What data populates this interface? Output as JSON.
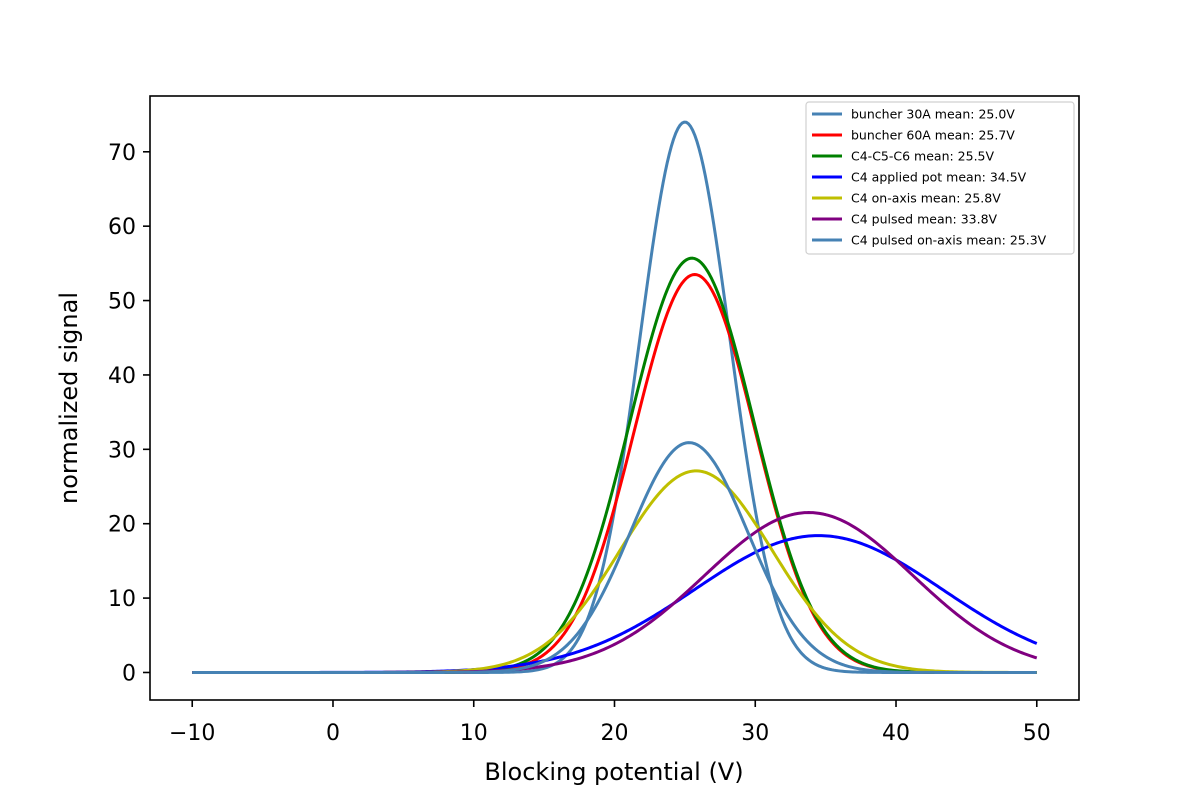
{
  "chart_data": {
    "type": "line",
    "title": "",
    "xlabel": "Blocking potential (V)",
    "ylabel": "normalized signal",
    "xlim": [
      -13,
      53
    ],
    "ylim": [
      -3.7,
      77.5
    ],
    "xticks": [
      -10,
      0,
      10,
      20,
      30,
      40,
      50
    ],
    "xtick_labels": [
      "−10",
      "0",
      "10",
      "20",
      "30",
      "40",
      "50"
    ],
    "yticks": [
      0,
      10,
      20,
      30,
      40,
      50,
      60,
      70
    ],
    "ytick_labels": [
      "0",
      "10",
      "20",
      "30",
      "40",
      "50",
      "60",
      "70"
    ],
    "x_range": [
      -10,
      50
    ],
    "grid": false,
    "legend_position": "top-right",
    "series": [
      {
        "name": "buncher 30A mean: 25.0V",
        "color": "#4682b4",
        "model": "gaussian",
        "mean": 25.0,
        "peak": 74.0,
        "sigma": 3.2
      },
      {
        "name": "buncher 60A mean: 25.7V",
        "color": "#ff0000",
        "model": "gaussian",
        "mean": 25.7,
        "peak": 53.5,
        "sigma": 4.3
      },
      {
        "name": "C4-C5-C6 mean: 25.5V",
        "color": "#008000",
        "model": "gaussian",
        "mean": 25.5,
        "peak": 55.7,
        "sigma": 4.4
      },
      {
        "name": "C4 applied pot mean: 34.5V",
        "color": "#0000ff",
        "model": "gaussian",
        "mean": 34.5,
        "peak": 18.4,
        "sigma": 8.8
      },
      {
        "name": "C4 on-axis mean: 25.8V",
        "color": "#bfbf00",
        "model": "gaussian",
        "mean": 25.8,
        "peak": 27.1,
        "sigma": 5.4
      },
      {
        "name": "C4 pulsed mean: 33.8V",
        "color": "#800080",
        "model": "gaussian",
        "mean": 33.8,
        "peak": 21.5,
        "sigma": 7.4
      },
      {
        "name": "C4 pulsed on-axis mean: 25.3V",
        "color": "#4682b4",
        "model": "gaussian",
        "mean": 25.3,
        "peak": 30.9,
        "sigma": 4.2
      }
    ]
  }
}
